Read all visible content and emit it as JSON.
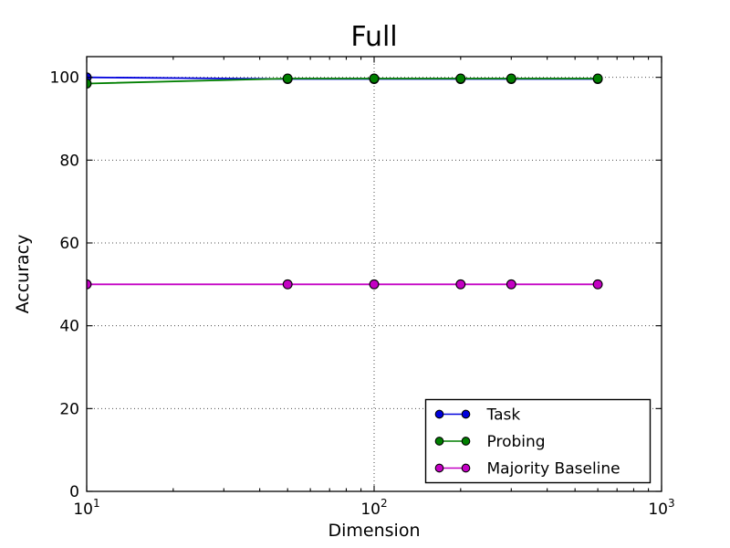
{
  "figure": {
    "title": "Full",
    "xlabel": "Dimension",
    "ylabel": "Accuracy"
  },
  "chart_data": {
    "type": "line",
    "title": "Full",
    "xlabel": "Dimension",
    "ylabel": "Accuracy",
    "x_scale": "log",
    "grid": "dotted",
    "x": [
      10,
      50,
      100,
      200,
      300,
      600
    ],
    "series": [
      {
        "name": "Task",
        "color": "#0000dd",
        "values": [
          100,
          99.6,
          99.6,
          99.6,
          99.6,
          99.6
        ]
      },
      {
        "name": "Probing",
        "color": "#007f00",
        "values": [
          98.5,
          99.7,
          99.7,
          99.7,
          99.7,
          99.7
        ]
      },
      {
        "name": "Majority Baseline",
        "color": "#c400c4",
        "values": [
          50,
          50,
          50,
          50,
          50,
          50
        ]
      }
    ],
    "xlim": [
      10,
      1000
    ],
    "ylim": [
      0,
      105
    ],
    "y_ticks": [
      0,
      20,
      40,
      60,
      80,
      100
    ],
    "x_ticks": [
      10,
      100,
      1000
    ],
    "x_tick_exponents": [
      1,
      2,
      3
    ],
    "marker": "circle",
    "marker_edge_color": "#000000",
    "legend_position": "lower right"
  }
}
